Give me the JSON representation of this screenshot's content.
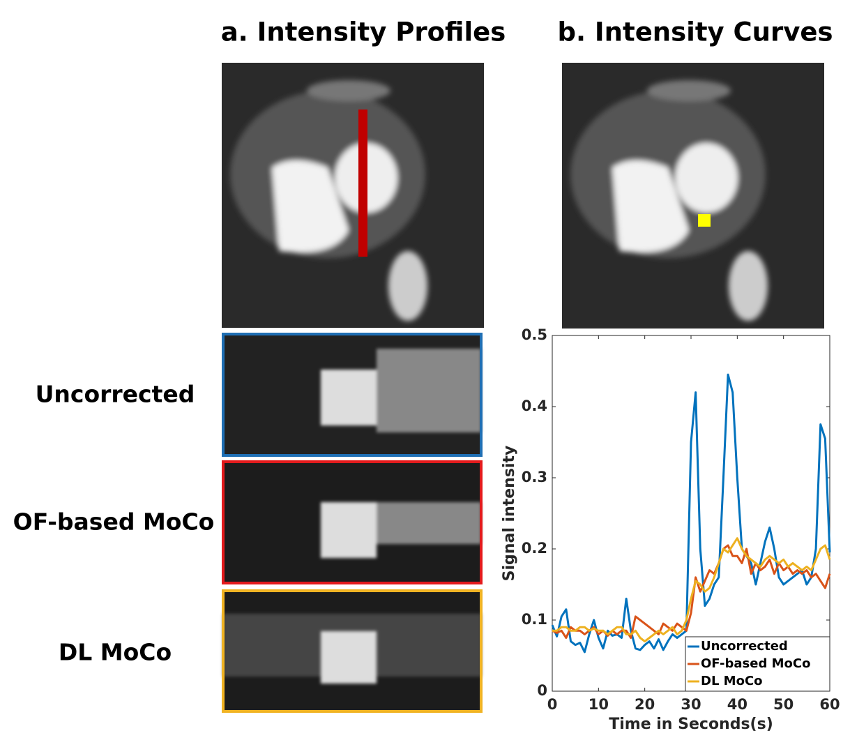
{
  "panels": {
    "a_title": "a. Intensity Profiles",
    "b_title": "b. Intensity Curves",
    "row_labels": [
      "Uncorrected",
      "OF-based MoCo",
      "DL MoCo"
    ]
  },
  "chart_data": {
    "type": "line",
    "xlabel": "Time in Seconds(s)",
    "ylabel": "Signal intensity",
    "x": [
      0,
      1,
      2,
      3,
      4,
      5,
      6,
      7,
      8,
      9,
      10,
      11,
      12,
      13,
      14,
      15,
      16,
      17,
      18,
      19,
      20,
      21,
      22,
      23,
      24,
      25,
      26,
      27,
      28,
      29,
      30,
      31,
      32,
      33,
      34,
      35,
      36,
      37,
      38,
      39,
      40,
      41,
      42,
      43,
      44,
      45,
      46,
      47,
      48,
      49,
      50,
      51,
      52,
      53,
      54,
      55,
      56,
      57,
      58,
      59,
      60
    ],
    "series": [
      {
        "name": "Uncorrected",
        "color": "#0072bd",
        "values": [
          0.093,
          0.077,
          0.105,
          0.115,
          0.07,
          0.065,
          0.068,
          0.055,
          0.08,
          0.1,
          0.075,
          0.06,
          0.085,
          0.078,
          0.08,
          0.075,
          0.13,
          0.085,
          0.06,
          0.058,
          0.065,
          0.07,
          0.06,
          0.073,
          0.058,
          0.07,
          0.08,
          0.075,
          0.08,
          0.085,
          0.35,
          0.42,
          0.2,
          0.12,
          0.13,
          0.15,
          0.16,
          0.3,
          0.445,
          0.42,
          0.3,
          0.2,
          0.19,
          0.18,
          0.15,
          0.18,
          0.21,
          0.23,
          0.2,
          0.16,
          0.15,
          0.155,
          0.16,
          0.165,
          0.17,
          0.15,
          0.16,
          0.2,
          0.375,
          0.355,
          0.195
        ]
      },
      {
        "name": "OF-based MoCo",
        "color": "#d95319",
        "values": [
          0.085,
          0.082,
          0.085,
          0.075,
          0.09,
          0.085,
          0.085,
          0.08,
          0.085,
          0.09,
          0.08,
          0.085,
          0.078,
          0.085,
          0.08,
          0.085,
          0.085,
          0.075,
          0.105,
          0.1,
          0.095,
          0.09,
          0.085,
          0.08,
          0.095,
          0.09,
          0.085,
          0.095,
          0.09,
          0.085,
          0.11,
          0.16,
          0.14,
          0.155,
          0.17,
          0.165,
          0.18,
          0.2,
          0.205,
          0.19,
          0.19,
          0.18,
          0.2,
          0.165,
          0.18,
          0.17,
          0.175,
          0.185,
          0.165,
          0.18,
          0.17,
          0.175,
          0.165,
          0.17,
          0.165,
          0.17,
          0.16,
          0.165,
          0.155,
          0.145,
          0.165
        ]
      },
      {
        "name": "DL MoCo",
        "color": "#edb120",
        "values": [
          0.085,
          0.085,
          0.09,
          0.09,
          0.085,
          0.085,
          0.09,
          0.09,
          0.085,
          0.088,
          0.085,
          0.085,
          0.08,
          0.085,
          0.09,
          0.09,
          0.08,
          0.08,
          0.085,
          0.075,
          0.07,
          0.075,
          0.08,
          0.085,
          0.08,
          0.085,
          0.09,
          0.08,
          0.085,
          0.1,
          0.13,
          0.155,
          0.15,
          0.14,
          0.145,
          0.16,
          0.18,
          0.2,
          0.195,
          0.205,
          0.215,
          0.2,
          0.19,
          0.185,
          0.18,
          0.175,
          0.185,
          0.19,
          0.185,
          0.18,
          0.185,
          0.175,
          0.18,
          0.175,
          0.17,
          0.175,
          0.17,
          0.185,
          0.2,
          0.205,
          0.185
        ]
      }
    ],
    "xlim": [
      0,
      60
    ],
    "xticks": [
      0,
      10,
      20,
      30,
      40,
      50,
      60
    ],
    "ylim": [
      0,
      0.5
    ],
    "yticks": [
      0,
      0.1,
      0.2,
      0.3,
      0.4,
      0.5
    ],
    "legend": "lower right",
    "grid": false
  }
}
